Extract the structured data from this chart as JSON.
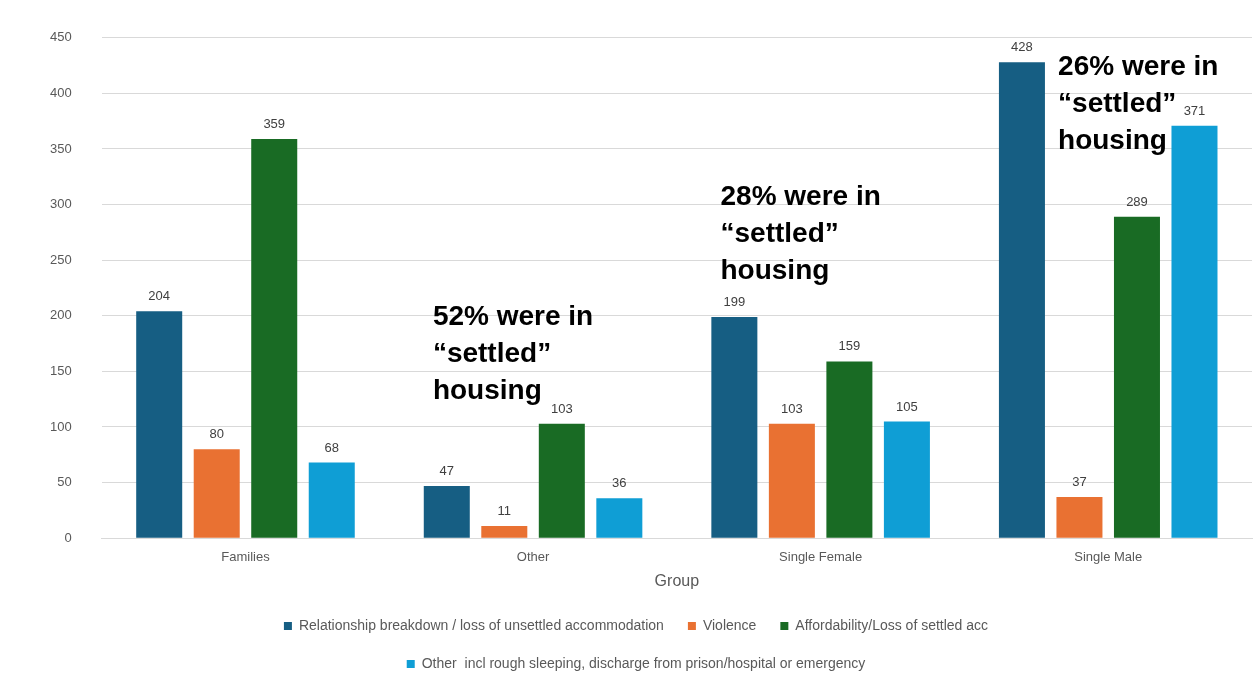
{
  "chart_data": {
    "type": "bar",
    "xlabel": "Group",
    "categories": [
      "Families",
      "Other",
      "Single Female",
      "Single Male"
    ],
    "series": [
      {
        "name": "Relationship breakdown / loss of unsettled accommodation",
        "color": "#165e83",
        "values": [
          204,
          47,
          199,
          428
        ]
      },
      {
        "name": "Violence",
        "color": "#e97132",
        "values": [
          80,
          11,
          103,
          37
        ]
      },
      {
        "name": "Affordability/Loss of settled acc",
        "color": "#196b24",
        "values": [
          359,
          103,
          159,
          289
        ]
      },
      {
        "name": "Other  incl rough sleeping, discharge from prison/hospital or emergency",
        "color": "#0f9ed5",
        "values": [
          68,
          36,
          105,
          371
        ]
      }
    ],
    "ylim": [
      0,
      450
    ],
    "yticks": [
      0,
      50,
      100,
      150,
      200,
      250,
      300,
      350,
      400,
      450
    ],
    "grid": "y",
    "legend": "bottom",
    "data_labels": true,
    "annotations": [
      "52% were in\n“settled”\nhousing",
      "28% were in\n“settled”\nhousing",
      "26% were in\n“settled”\nhousing"
    ]
  }
}
